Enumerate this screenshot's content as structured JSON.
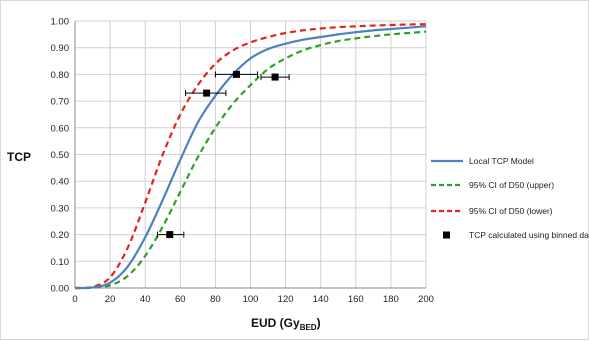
{
  "chart_data": {
    "type": "line",
    "title": "",
    "ylabel": "TCP",
    "xlabel": {
      "main": "EUD (Gy",
      "sub": "BED",
      "close": ")"
    },
    "xlim": [
      0,
      200
    ],
    "ylim": [
      0,
      1
    ],
    "xticks": [
      0,
      20,
      40,
      60,
      80,
      100,
      120,
      140,
      160,
      180,
      200
    ],
    "yticks": [
      "0.00",
      "0.10",
      "0.20",
      "0.30",
      "0.40",
      "0.50",
      "0.60",
      "0.70",
      "0.80",
      "0.90",
      "1.00"
    ],
    "grid": true,
    "legend_position": "right",
    "x": [
      0,
      10,
      20,
      30,
      40,
      50,
      60,
      70,
      80,
      90,
      100,
      110,
      120,
      130,
      140,
      150,
      160,
      170,
      180,
      190,
      200
    ],
    "series": [
      {
        "name": "Local TCP Model",
        "color": "#4f81bd",
        "style": "solid",
        "values": [
          0.0,
          0.002,
          0.02,
          0.08,
          0.19,
          0.33,
          0.48,
          0.62,
          0.72,
          0.8,
          0.86,
          0.895,
          0.915,
          0.93,
          0.94,
          0.95,
          0.958,
          0.965,
          0.97,
          0.975,
          0.98
        ]
      },
      {
        "name": "95% CI of D50 (upper)",
        "color": "#2ca02c",
        "style": "dashed",
        "values": [
          0.0,
          0.001,
          0.01,
          0.045,
          0.12,
          0.23,
          0.36,
          0.49,
          0.6,
          0.69,
          0.76,
          0.82,
          0.86,
          0.89,
          0.91,
          0.925,
          0.935,
          0.943,
          0.95,
          0.955,
          0.96
        ]
      },
      {
        "name": "95% CI of D50 (lower)",
        "color": "#e3241b",
        "style": "dashed",
        "values": [
          0.0,
          0.004,
          0.04,
          0.15,
          0.32,
          0.5,
          0.65,
          0.76,
          0.84,
          0.89,
          0.92,
          0.94,
          0.955,
          0.965,
          0.972,
          0.977,
          0.98,
          0.983,
          0.985,
          0.987,
          0.988
        ]
      }
    ],
    "points": {
      "name": "TCP calculated using binned data",
      "color": "#000000",
      "data": [
        {
          "x": 54,
          "y": 0.2,
          "xerr": [
            47,
            62
          ]
        },
        {
          "x": 75,
          "y": 0.73,
          "xerr": [
            63,
            86
          ]
        },
        {
          "x": 92,
          "y": 0.8,
          "xerr": [
            80,
            104
          ]
        },
        {
          "x": 114,
          "y": 0.79,
          "xerr": [
            106,
            122
          ]
        }
      ]
    }
  }
}
